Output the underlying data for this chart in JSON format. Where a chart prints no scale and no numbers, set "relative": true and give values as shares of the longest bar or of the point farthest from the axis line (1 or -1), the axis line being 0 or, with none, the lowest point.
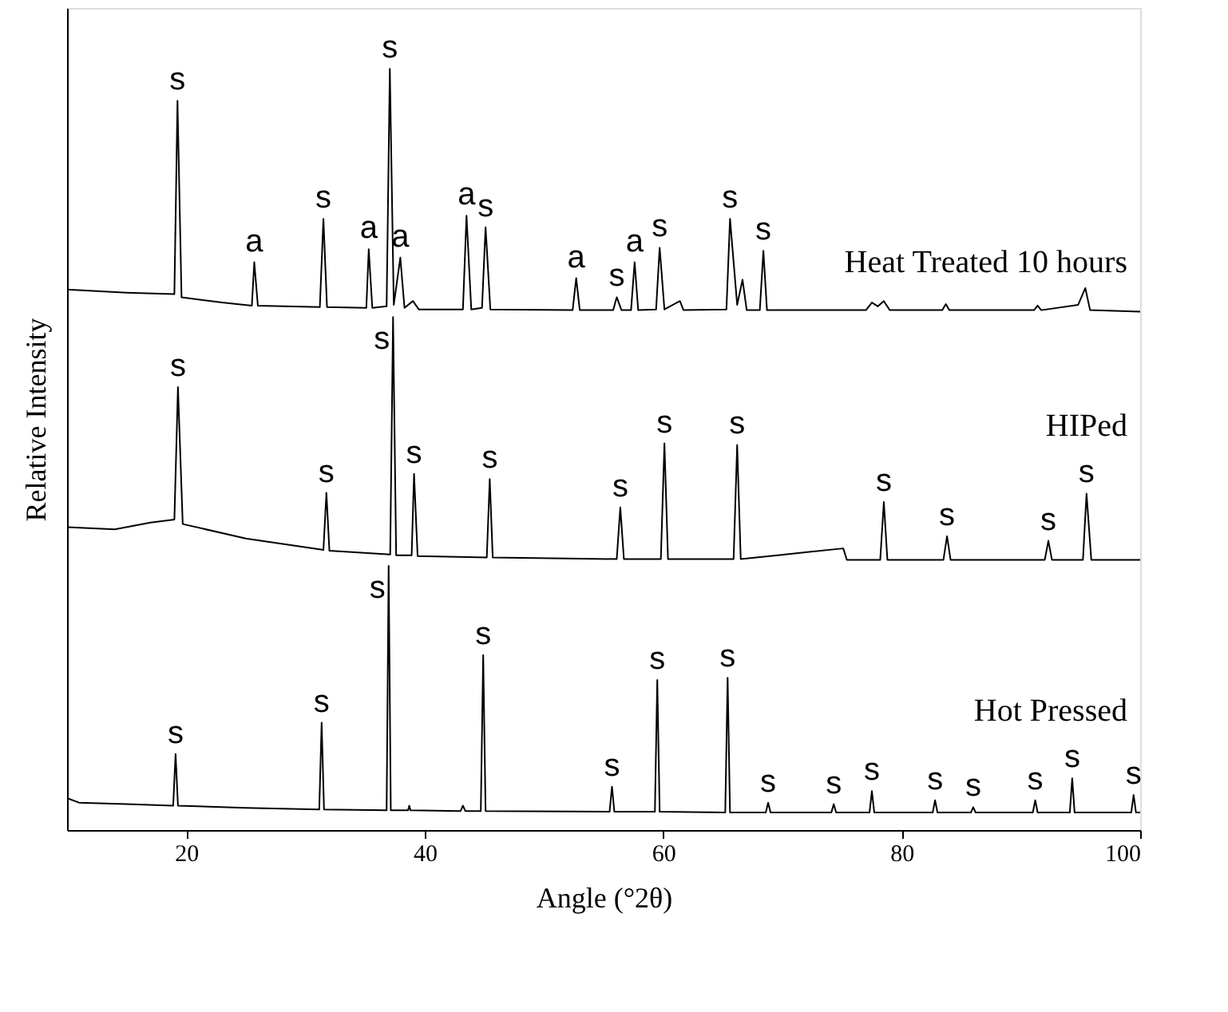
{
  "chart_data": {
    "type": "line",
    "relative": true,
    "xlabel": "Angle (°2θ)",
    "ylabel": "Relative Intensity",
    "xlim": [
      10,
      100
    ],
    "xticks": [
      20,
      40,
      60,
      80,
      100
    ],
    "grid": false,
    "legend": false,
    "marker": "none",
    "line_style": "solid",
    "series": [
      {
        "name": "Heat Treated 10 hours",
        "color": "#000000",
        "x": [
          10,
          15,
          19.0,
          19.26,
          19.6,
          23,
          25.5,
          25.7,
          26,
          31.2,
          31.5,
          31.8,
          35.1,
          35.3,
          35.6,
          36.8,
          37.07,
          37.4,
          37.95,
          38.3,
          39.0,
          39.5,
          43.2,
          43.5,
          43.9,
          44.8,
          45.1,
          45.5,
          52.4,
          52.7,
          53.0,
          55.8,
          56.1,
          56.5,
          57.3,
          57.6,
          57.9,
          59.4,
          59.7,
          60.1,
          61.4,
          61.7,
          65.3,
          65.6,
          66.2,
          66.65,
          67.0,
          68.1,
          68.4,
          68.7,
          77.0,
          77.5,
          78.0,
          78.5,
          79,
          83.4,
          83.7,
          84,
          91.1,
          91.4,
          91.7,
          94.8,
          95.4,
          95.8,
          100
        ],
        "values": [
          0.71,
          0.706,
          0.704,
          0.958,
          0.7,
          0.693,
          0.689,
          0.746,
          0.689,
          0.687,
          0.803,
          0.687,
          0.686,
          0.763,
          0.686,
          0.688,
          1.0,
          0.69,
          0.752,
          0.686,
          0.695,
          0.684,
          0.684,
          0.807,
          0.684,
          0.686,
          0.792,
          0.684,
          0.683,
          0.725,
          0.683,
          0.683,
          0.7,
          0.683,
          0.683,
          0.746,
          0.683,
          0.684,
          0.765,
          0.684,
          0.695,
          0.683,
          0.684,
          0.803,
          0.69,
          0.723,
          0.683,
          0.683,
          0.761,
          0.683,
          0.683,
          0.693,
          0.688,
          0.695,
          0.683,
          0.683,
          0.691,
          0.683,
          0.683,
          0.689,
          0.683,
          0.69,
          0.712,
          0.683,
          0.681
        ]
      },
      {
        "name": "HIPed",
        "color": "#000000",
        "x": [
          10,
          14,
          17,
          19.0,
          19.3,
          19.7,
          25,
          31.5,
          31.75,
          32,
          37.1,
          37.34,
          37.6,
          38.9,
          39.1,
          39.4,
          45.2,
          45.45,
          45.7,
          56.1,
          56.4,
          56.7,
          59.8,
          60.1,
          60.4,
          65.9,
          66.2,
          66.5,
          69.6,
          75.1,
          75.4,
          78.2,
          78.5,
          78.8,
          83.5,
          83.8,
          84.1,
          92.0,
          92.3,
          92.6,
          95.2,
          95.5,
          95.9,
          100
        ],
        "values": [
          0.398,
          0.395,
          0.404,
          0.408,
          0.582,
          0.402,
          0.383,
          0.368,
          0.443,
          0.367,
          0.362,
          0.674,
          0.361,
          0.361,
          0.468,
          0.36,
          0.358,
          0.461,
          0.358,
          0.356,
          0.424,
          0.356,
          0.356,
          0.508,
          0.356,
          0.356,
          0.506,
          0.356,
          0.361,
          0.37,
          0.355,
          0.355,
          0.431,
          0.355,
          0.355,
          0.386,
          0.355,
          0.355,
          0.38,
          0.355,
          0.355,
          0.442,
          0.355,
          0.355
        ]
      },
      {
        "name": "Hot Pressed",
        "color": "#000000",
        "x": [
          10,
          11,
          15,
          18.9,
          19.1,
          19.3,
          25,
          31.15,
          31.35,
          31.55,
          36.8,
          36.97,
          37.15,
          38.6,
          38.7,
          38.8,
          43.0,
          43.2,
          43.4,
          44.7,
          44.9,
          45.1,
          55.5,
          55.7,
          55.9,
          59.3,
          59.5,
          59.7,
          65.2,
          65.4,
          65.6,
          68.6,
          68.8,
          69.0,
          74.1,
          74.3,
          74.5,
          77.3,
          77.5,
          77.7,
          82.6,
          82.8,
          83,
          85.8,
          86.0,
          86.2,
          91.0,
          91.2,
          91.4,
          94.1,
          94.3,
          94.5,
          99.25,
          99.45,
          99.65,
          100
        ],
        "values": [
          0.042,
          0.036,
          0.034,
          0.032,
          0.1,
          0.032,
          0.029,
          0.027,
          0.141,
          0.027,
          0.026,
          0.347,
          0.026,
          0.026,
          0.032,
          0.026,
          0.025,
          0.032,
          0.025,
          0.025,
          0.23,
          0.025,
          0.024,
          0.057,
          0.024,
          0.024,
          0.197,
          0.024,
          0.023,
          0.2,
          0.023,
          0.023,
          0.036,
          0.023,
          0.023,
          0.034,
          0.023,
          0.023,
          0.051,
          0.023,
          0.023,
          0.039,
          0.023,
          0.023,
          0.03,
          0.023,
          0.023,
          0.039,
          0.023,
          0.023,
          0.068,
          0.023,
          0.023,
          0.046,
          0.023,
          0.023
        ]
      }
    ],
    "annotations": [
      {
        "text": "s",
        "x": 19.26,
        "y": 0.958
      },
      {
        "text": "a",
        "x": 25.7,
        "y": 0.746
      },
      {
        "text": "s",
        "x": 31.5,
        "y": 0.803
      },
      {
        "text": "a",
        "x": 35.3,
        "y": 0.763
      },
      {
        "text": "s",
        "x": 37.07,
        "y": 1.0
      },
      {
        "text": "a",
        "x": 37.95,
        "y": 0.752
      },
      {
        "text": "a",
        "x": 43.5,
        "y": 0.807
      },
      {
        "text": "s",
        "x": 45.1,
        "y": 0.792
      },
      {
        "text": "a",
        "x": 52.7,
        "y": 0.725
      },
      {
        "text": "s",
        "x": 56.1,
        "y": 0.7
      },
      {
        "text": "a",
        "x": 57.6,
        "y": 0.746
      },
      {
        "text": "s",
        "x": 59.7,
        "y": 0.765
      },
      {
        "text": "s",
        "x": 65.6,
        "y": 0.803
      },
      {
        "text": "s",
        "x": 68.4,
        "y": 0.761
      },
      {
        "text": "s",
        "x": 19.3,
        "y": 0.582
      },
      {
        "text": "s",
        "x": 31.75,
        "y": 0.443
      },
      {
        "text": "s",
        "x": 37.34,
        "y": 0.674
      },
      {
        "text": "s",
        "x": 39.1,
        "y": 0.468
      },
      {
        "text": "s",
        "x": 45.45,
        "y": 0.461
      },
      {
        "text": "s",
        "x": 56.4,
        "y": 0.424
      },
      {
        "text": "s",
        "x": 60.1,
        "y": 0.508
      },
      {
        "text": "s",
        "x": 66.2,
        "y": 0.506
      },
      {
        "text": "s",
        "x": 78.5,
        "y": 0.431
      },
      {
        "text": "s",
        "x": 83.8,
        "y": 0.386
      },
      {
        "text": "s",
        "x": 92.3,
        "y": 0.38
      },
      {
        "text": "s",
        "x": 95.5,
        "y": 0.442
      },
      {
        "text": "s",
        "x": 19.1,
        "y": 0.1
      },
      {
        "text": "s",
        "x": 31.35,
        "y": 0.141
      },
      {
        "text": "s",
        "x": 36.97,
        "y": 0.347
      },
      {
        "text": "s",
        "x": 44.9,
        "y": 0.23
      },
      {
        "text": "s",
        "x": 55.7,
        "y": 0.057
      },
      {
        "text": "s",
        "x": 59.5,
        "y": 0.197
      },
      {
        "text": "s",
        "x": 65.4,
        "y": 0.2
      },
      {
        "text": "s",
        "x": 68.8,
        "y": 0.036
      },
      {
        "text": "s",
        "x": 74.3,
        "y": 0.034
      },
      {
        "text": "s",
        "x": 77.5,
        "y": 0.051
      },
      {
        "text": "s",
        "x": 82.8,
        "y": 0.039
      },
      {
        "text": "s",
        "x": 86.0,
        "y": 0.03
      },
      {
        "text": "s",
        "x": 91.2,
        "y": 0.039
      },
      {
        "text": "s",
        "x": 94.3,
        "y": 0.068
      },
      {
        "text": "s",
        "x": 99.45,
        "y": 0.046
      }
    ]
  }
}
